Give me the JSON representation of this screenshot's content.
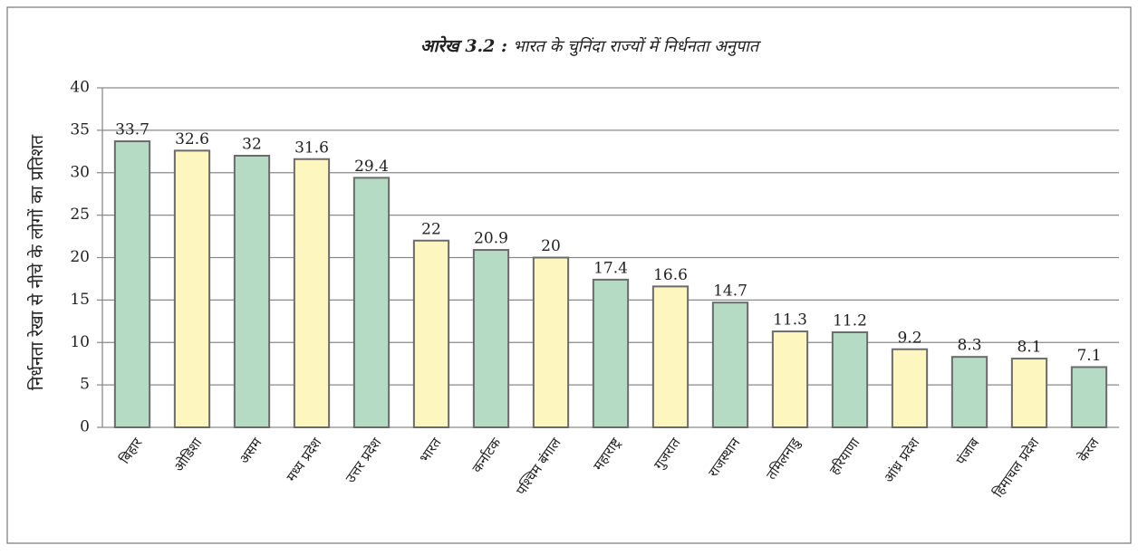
{
  "chart_data": {
    "type": "bar",
    "title_label": "आरेख 3.2 :",
    "title": "भारत के चुनिंदा राज्यों में निर्धनता अनुपात",
    "ylabel": "निर्धनता रेखा से नीचे के लोगों का प्रतिशत",
    "categories": [
      "बिहार",
      "ओडिशा",
      "असम",
      "मध्य प्रदेश",
      "उत्तर प्रदेश",
      "भारत",
      "कर्नाटक",
      "पश्चिम बंगाल",
      "महाराष्ट्र",
      "गुजरात",
      "राजस्थान",
      "तमिलनाडु",
      "हरियाणा",
      "आंध्र प्रदेश",
      "पंजाब",
      "हिमाचल प्रदेश",
      "केरल"
    ],
    "values": [
      33.7,
      32.6,
      32,
      31.6,
      29.4,
      22,
      20.9,
      20,
      17.4,
      16.6,
      14.7,
      11.3,
      11.2,
      9.2,
      8.3,
      8.1,
      7.1
    ],
    "colors": [
      "#b5dbc4",
      "#fdf7bf",
      "#b5dbc4",
      "#fdf7bf",
      "#b5dbc4",
      "#fdf7bf",
      "#b5dbc4",
      "#fdf7bf",
      "#b5dbc4",
      "#fdf7bf",
      "#b5dbc4",
      "#fdf7bf",
      "#b5dbc4",
      "#fdf7bf",
      "#b5dbc4",
      "#fdf7bf",
      "#b5dbc4"
    ],
    "ylim": [
      0,
      40
    ],
    "yticks": [
      0,
      5,
      10,
      15,
      20,
      25,
      30,
      35,
      40
    ],
    "grid": true
  }
}
